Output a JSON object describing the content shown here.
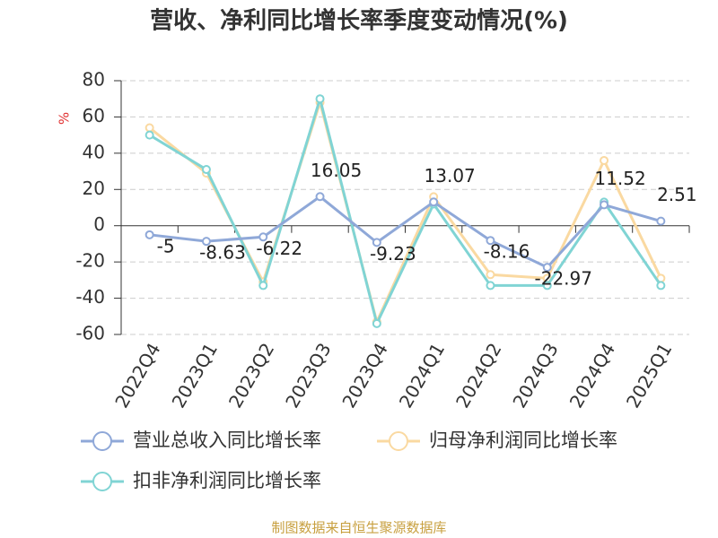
{
  "chart_data": {
    "type": "line",
    "title": "营收、净利同比增长率季度变动情况(%)",
    "y_label": "%",
    "source": "制图数据来自恒生聚源数据库",
    "categories": [
      "2022Q4",
      "2023Q1",
      "2023Q2",
      "2023Q3",
      "2023Q4",
      "2024Q1",
      "2024Q2",
      "2024Q3",
      "2024Q4",
      "2025Q1"
    ],
    "series": [
      {
        "name": "营业总收入同比增长率",
        "color": "#8fa8d8",
        "data_labels": true,
        "values": [
          -5,
          -8.63,
          -6.22,
          16.05,
          -9.23,
          13.07,
          -8.16,
          -22.97,
          11.52,
          2.51
        ]
      },
      {
        "name": "归母净利润同比增长率",
        "color": "#fad9a1",
        "data_labels": false,
        "values": [
          54,
          29,
          -31,
          68,
          -53,
          16,
          -27,
          -29,
          36,
          -29
        ]
      },
      {
        "name": "扣非净利润同比增长率",
        "color": "#80d4d4",
        "data_labels": false,
        "values": [
          50,
          31,
          -33,
          70,
          -54,
          12,
          -33,
          -33,
          13,
          -33
        ]
      }
    ],
    "ylim": [
      -60,
      80
    ],
    "yticks": [
      -60,
      -40,
      -20,
      0,
      20,
      40,
      60,
      80
    ],
    "grid": true
  }
}
